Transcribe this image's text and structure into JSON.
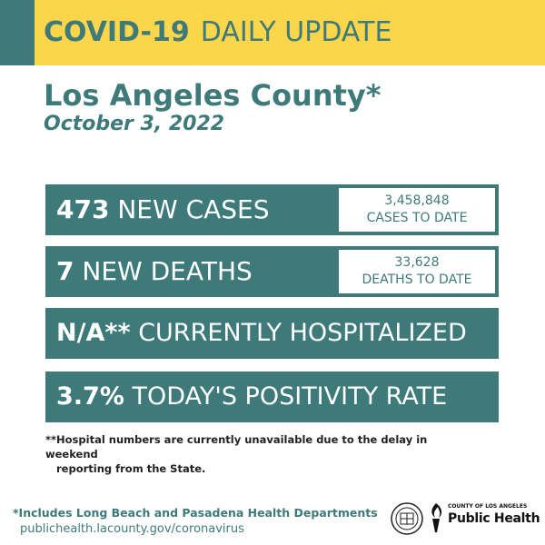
{
  "banner": {
    "bold": "COVID-19",
    "light": "DAILY UPDATE"
  },
  "county": "Los Angeles County*",
  "date": "October 3, 2022",
  "stats": {
    "cases": {
      "num": "473",
      "label": "NEW CASES",
      "total": "3,458,848",
      "total_label": "CASES TO DATE"
    },
    "deaths": {
      "num": "7",
      "label": "NEW DEATHS",
      "total": "33,628",
      "total_label": "DEATHS TO DATE"
    },
    "hosp": {
      "num": "N/A**",
      "label": "CURRENTLY HOSPITALIZED"
    },
    "positivity": {
      "num": "3.7%",
      "label": "TODAY'S POSITIVITY RATE"
    }
  },
  "footnote": {
    "line1": "**Hospital numbers are currently unavailable due to the delay in weekend",
    "line2": "reporting from the State."
  },
  "footer": {
    "includes": "*Includes Long Beach and Pasadena Health Departments",
    "url": "publichealth.lacounty.gov/coronavirus",
    "logo_small": "COUNTY OF LOS ANGELES",
    "logo_big": "Public Health",
    "seal_icon": "county-seal-icon",
    "torch_icon": "torch-logo-icon"
  },
  "colors": {
    "teal": "#3e7a7a",
    "yellow": "#fcd64a"
  }
}
